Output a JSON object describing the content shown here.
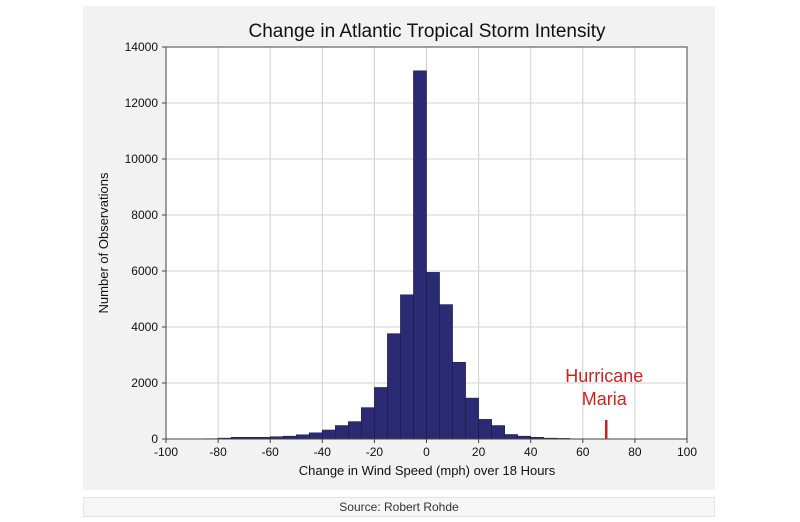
{
  "chart_data": {
    "type": "bar",
    "title": "Change in Atlantic Tropical Storm Intensity",
    "xlabel": "Change in Wind Speed (mph) over 18 Hours",
    "ylabel": "Number of Observations",
    "xlim": [
      -100,
      100
    ],
    "ylim": [
      0,
      14000
    ],
    "xticks": [
      -100,
      -80,
      -60,
      -40,
      -20,
      0,
      20,
      40,
      60,
      80,
      100
    ],
    "yticks": [
      0,
      2000,
      4000,
      6000,
      8000,
      10000,
      12000,
      14000
    ],
    "bin_width": 5,
    "grid": true,
    "bar_color": "#2b2b74",
    "bins": [
      {
        "x": -85,
        "value": 10
      },
      {
        "x": -80,
        "value": 30
      },
      {
        "x": -75,
        "value": 60
      },
      {
        "x": -70,
        "value": 60
      },
      {
        "x": -65,
        "value": 60
      },
      {
        "x": -60,
        "value": 80
      },
      {
        "x": -55,
        "value": 100
      },
      {
        "x": -50,
        "value": 150
      },
      {
        "x": -45,
        "value": 220
      },
      {
        "x": -40,
        "value": 320
      },
      {
        "x": -35,
        "value": 480
      },
      {
        "x": -30,
        "value": 620
      },
      {
        "x": -25,
        "value": 1120
      },
      {
        "x": -20,
        "value": 1840
      },
      {
        "x": -15,
        "value": 3760
      },
      {
        "x": -10,
        "value": 5150
      },
      {
        "x": -5,
        "value": 13150
      },
      {
        "x": 0,
        "value": 5950
      },
      {
        "x": 5,
        "value": 4800
      },
      {
        "x": 10,
        "value": 2740
      },
      {
        "x": 15,
        "value": 1460
      },
      {
        "x": 20,
        "value": 700
      },
      {
        "x": 25,
        "value": 480
      },
      {
        "x": 30,
        "value": 160
      },
      {
        "x": 35,
        "value": 100
      },
      {
        "x": 40,
        "value": 60
      },
      {
        "x": 45,
        "value": 30
      },
      {
        "x": 50,
        "value": 20
      }
    ],
    "annotation": {
      "lines": [
        "Hurricane",
        "Maria"
      ],
      "x": 69,
      "color": "#d22020"
    }
  },
  "source_text": "Source: Robert Rohde"
}
